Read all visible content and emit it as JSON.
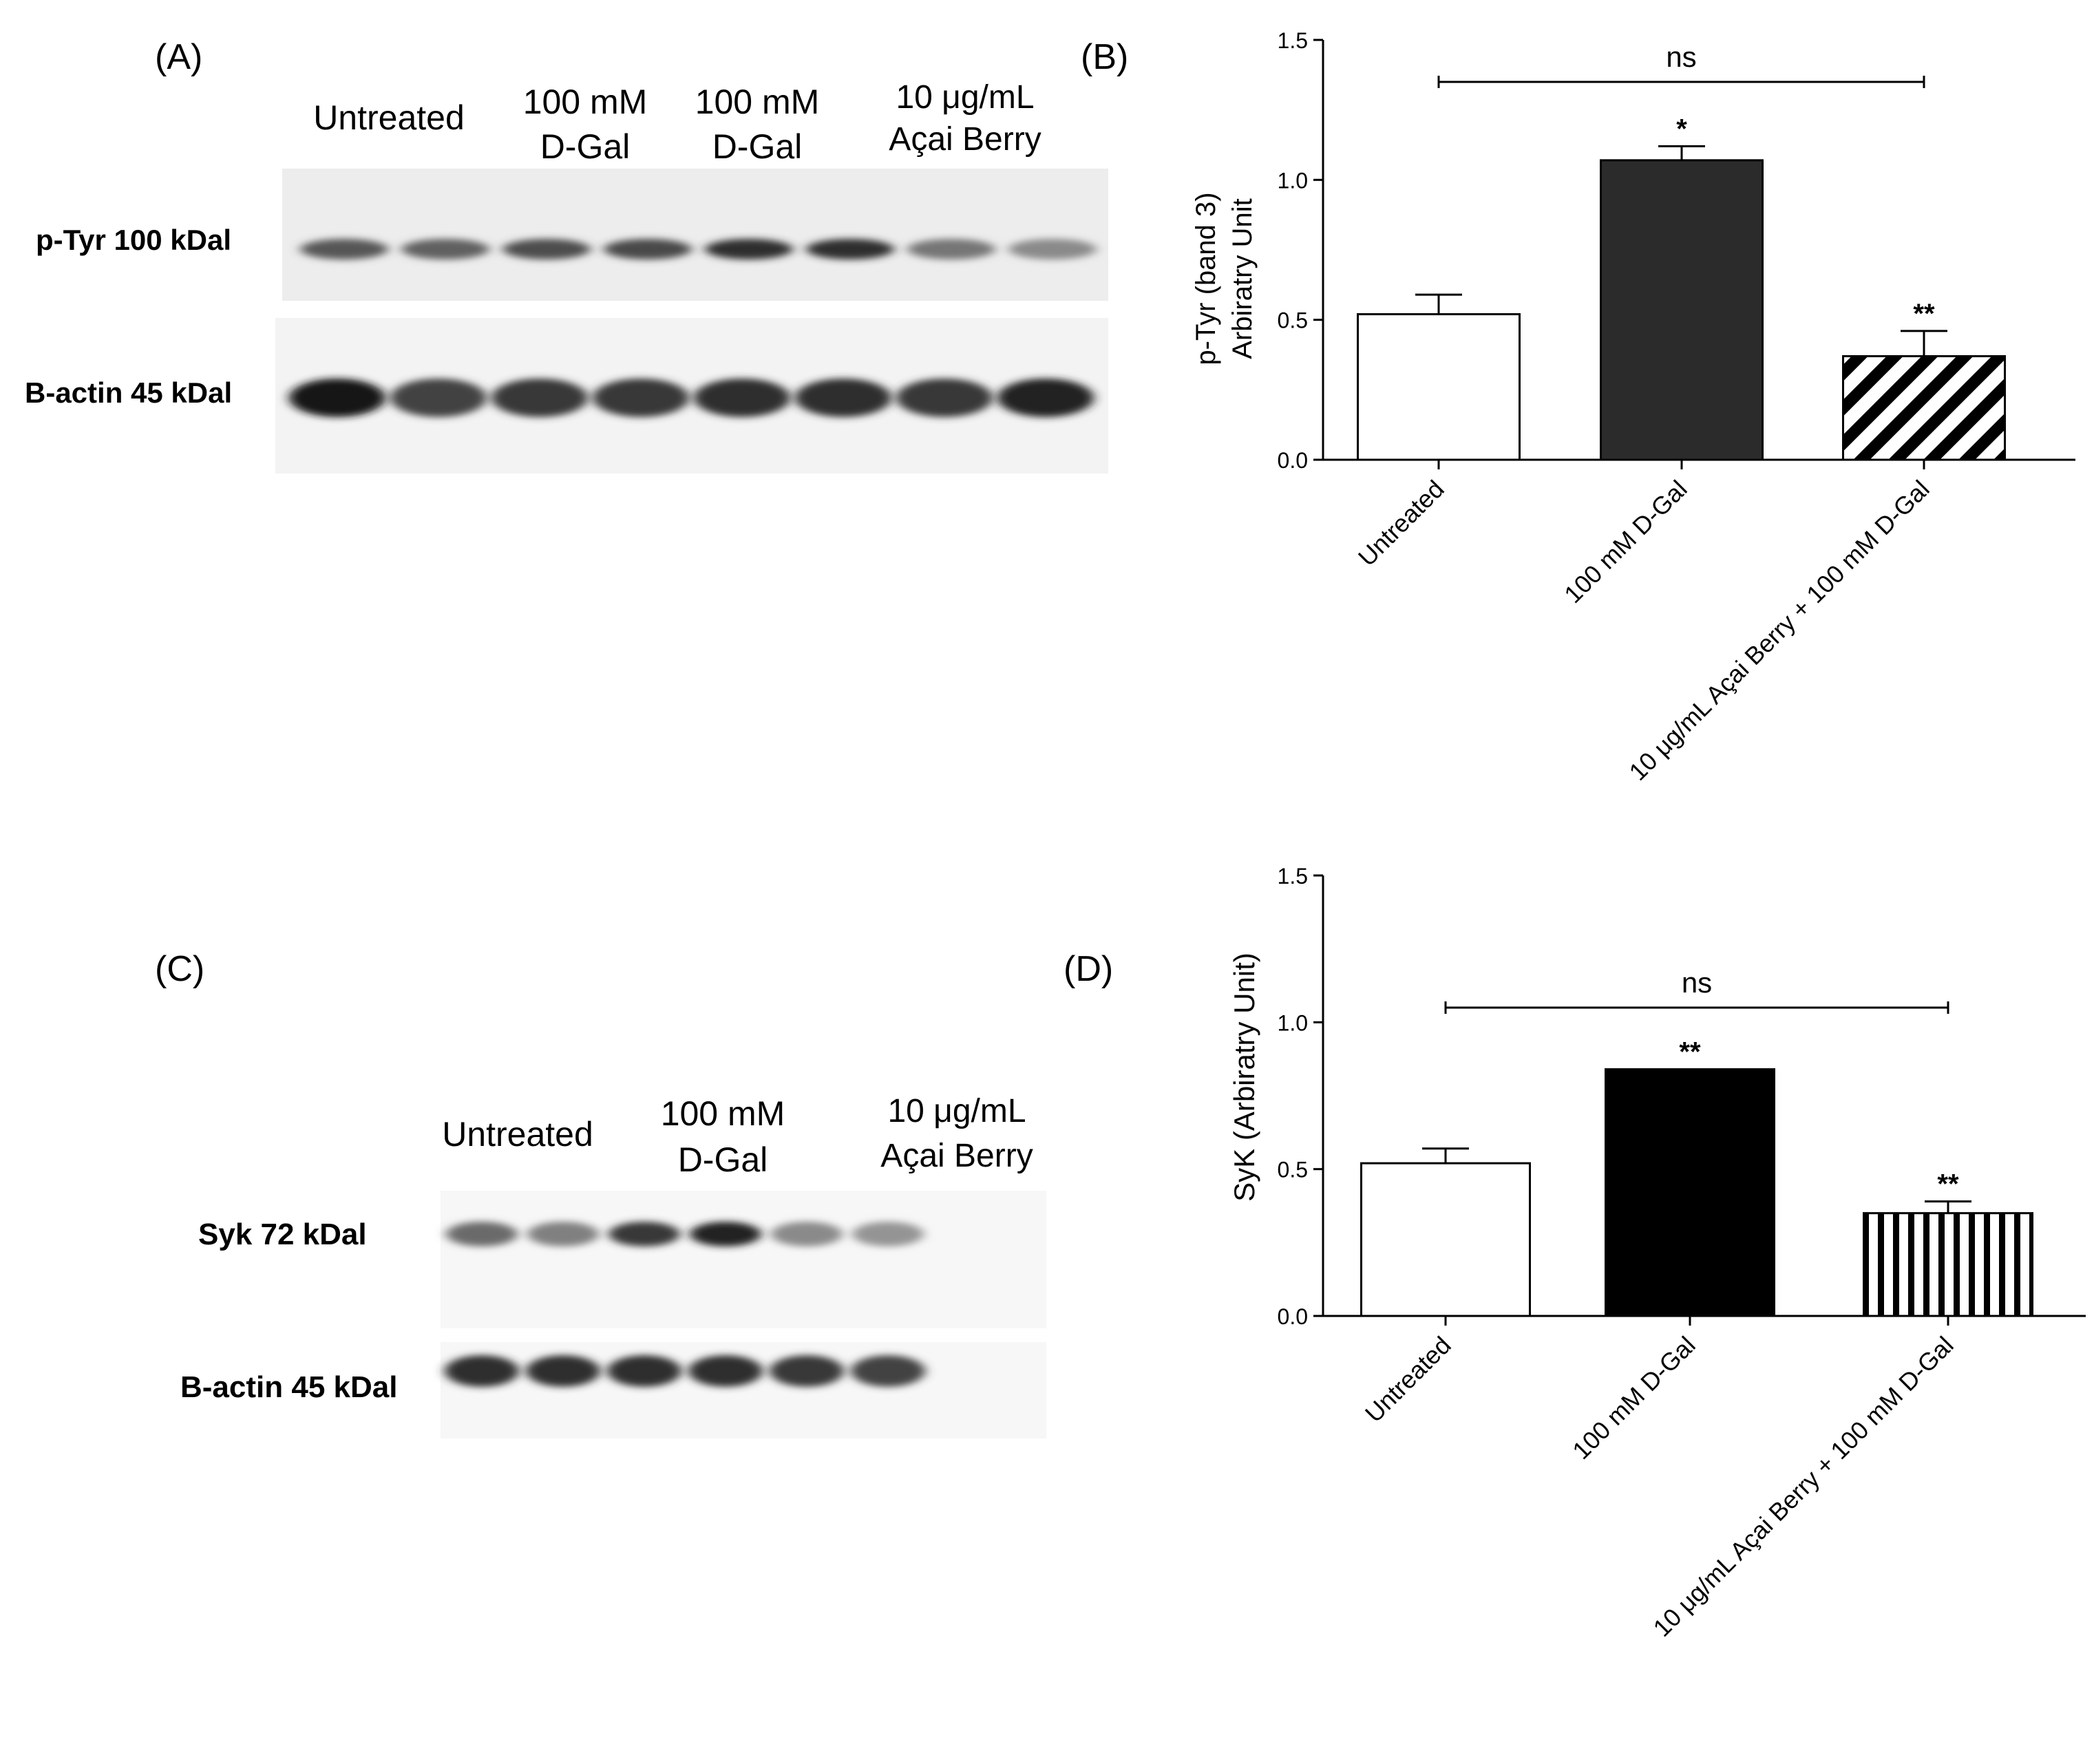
{
  "panels": {
    "A": {
      "label": "(A)",
      "lanes": [
        {
          "line1": "Untreated",
          "line2": ""
        },
        {
          "line1": "100 mM",
          "line2": "D-Gal"
        },
        {
          "line1": "100 mM",
          "line2": "D-Gal"
        },
        {
          "line1": "10 μg/mL",
          "line2": "Açai Berry"
        }
      ],
      "blot_rows": [
        {
          "label": "p-Tyr 100 kDal",
          "intensities": [
            0.65,
            0.6,
            0.7,
            0.72,
            0.85,
            0.85,
            0.5,
            0.4
          ]
        },
        {
          "label": "B-actin 45 kDal",
          "intensities": [
            0.95,
            0.75,
            0.8,
            0.8,
            0.85,
            0.85,
            0.8,
            0.9
          ]
        }
      ]
    },
    "C": {
      "label": "(C)",
      "lanes": [
        {
          "line1": "Untreated",
          "line2": ""
        },
        {
          "line1": "100 mM",
          "line2": "D-Gal"
        },
        {
          "line1": "10 μg/mL",
          "line2": "Açai Berry"
        }
      ],
      "blot_rows": [
        {
          "label": "Syk 72 kDal",
          "intensities": [
            0.55,
            0.45,
            0.8,
            0.9,
            0.4,
            0.35
          ]
        },
        {
          "label": "B-actin 45 kDal",
          "intensities": [
            0.85,
            0.85,
            0.85,
            0.85,
            0.8,
            0.75
          ]
        }
      ]
    }
  },
  "chart_data": [
    {
      "panel_label": "(B)",
      "type": "bar",
      "ylabel_line1": "p-Tyr (band 3)",
      "ylabel_line2": "Arbiratry Unit",
      "ylim": [
        0,
        1.5
      ],
      "yticks": [
        "0.0",
        "0.5",
        "1.0",
        "1.5"
      ],
      "ytick_values": [
        0,
        0.5,
        1.0,
        1.5
      ],
      "categories": [
        "Untreated",
        "100 mM D-Gal",
        "10 μg/mL Açai Berry + 100 mM D-Gal"
      ],
      "values": [
        0.52,
        1.07,
        0.37
      ],
      "errors": [
        0.07,
        0.05,
        0.09
      ],
      "fills": [
        "white",
        "dark",
        "diagonal"
      ],
      "significance": [
        "",
        "*",
        "**"
      ],
      "bracket": {
        "label": "ns",
        "from": 0,
        "to": 2,
        "y": 1.35
      }
    },
    {
      "panel_label": "(D)",
      "type": "bar",
      "ylabel_line1": "SyK (Arbiratry Unit)",
      "ylabel_line2": "",
      "ylim": [
        0,
        1.5
      ],
      "yticks": [
        "0.0",
        "0.5",
        "1.0",
        "1.5"
      ],
      "ytick_values": [
        0,
        0.5,
        1.0,
        1.5
      ],
      "categories": [
        "Untreated",
        "100 mM D-Gal",
        "10 μg/mL Açai Berry + 100 mM D-Gal"
      ],
      "values": [
        0.52,
        0.84,
        0.35
      ],
      "errors": [
        0.05,
        0.0,
        0.04
      ],
      "fills": [
        "white",
        "black",
        "vertical"
      ],
      "significance": [
        "",
        "**",
        "**"
      ],
      "bracket": {
        "label": "ns",
        "from": 0,
        "to": 2,
        "y": 1.05
      }
    }
  ],
  "colors": {
    "dark_bar": "#2b2b2b",
    "black_bar": "#000000",
    "blot_bg": "#efefef"
  }
}
